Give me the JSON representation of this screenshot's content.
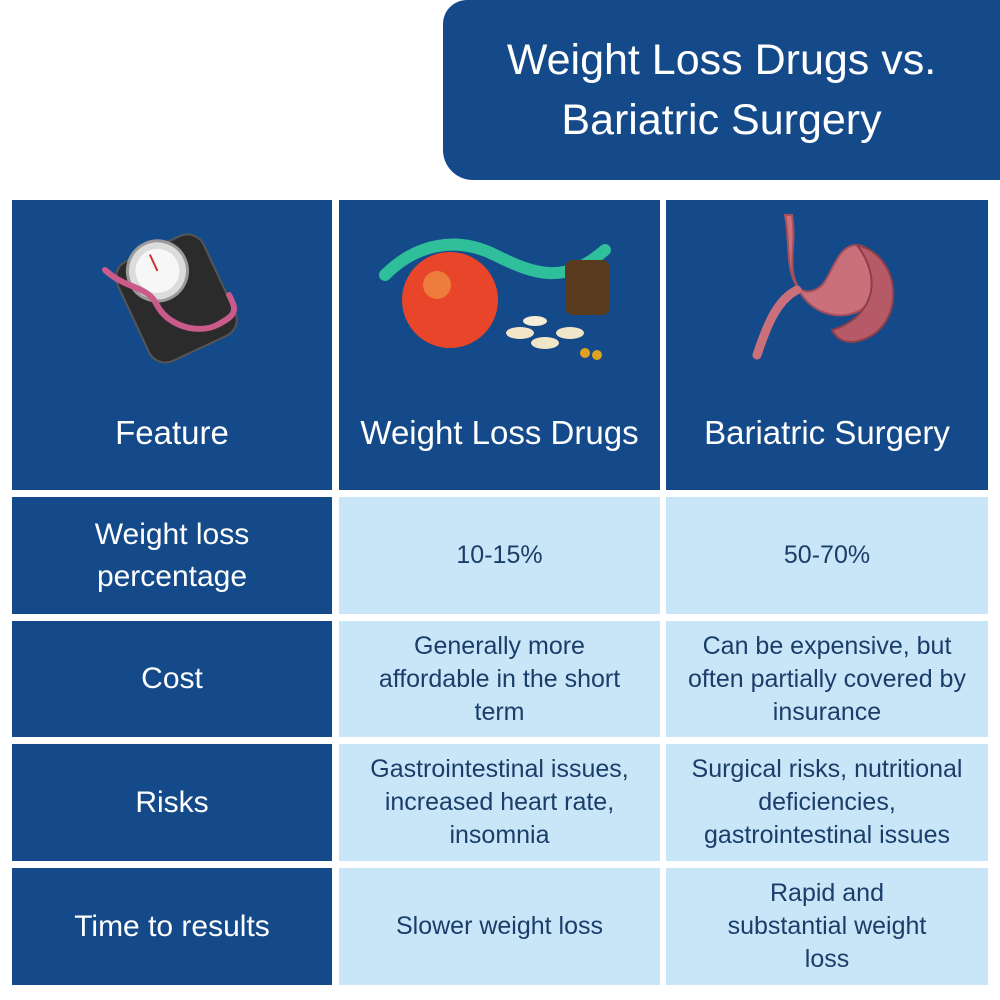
{
  "title": {
    "line1": "Weight Loss Drugs vs.",
    "line2": "Bariatric Surgery"
  },
  "header": {
    "feature": "Feature",
    "drugs": "Weight Loss Drugs",
    "surgery": "Bariatric Surgery"
  },
  "rows": [
    {
      "feature": "Weight loss percentage",
      "drugs": "10-15%",
      "surgery": "50-70%"
    },
    {
      "feature": "Cost",
      "drugs": "Generally more affordable in the short term",
      "surgery": "Can be expensive, but often partially covered by insurance"
    },
    {
      "feature": "Risks",
      "drugs": "Gastrointestinal issues, increased heart rate, insomnia",
      "surgery": "Surgical risks, nutritional deficiencies, gastrointestinal issues"
    },
    {
      "feature": "Time to results",
      "drugs": "Slower weight loss",
      "surgery": "Rapid and substantial weight loss"
    }
  ],
  "colors": {
    "dark": "#154a8a",
    "light": "#c8e6f7",
    "text_dark": "#1b3d6a"
  },
  "icons": {
    "feature": "scale-icon",
    "drugs": "apple-pills-tape-icon",
    "surgery": "stomach-icon"
  }
}
